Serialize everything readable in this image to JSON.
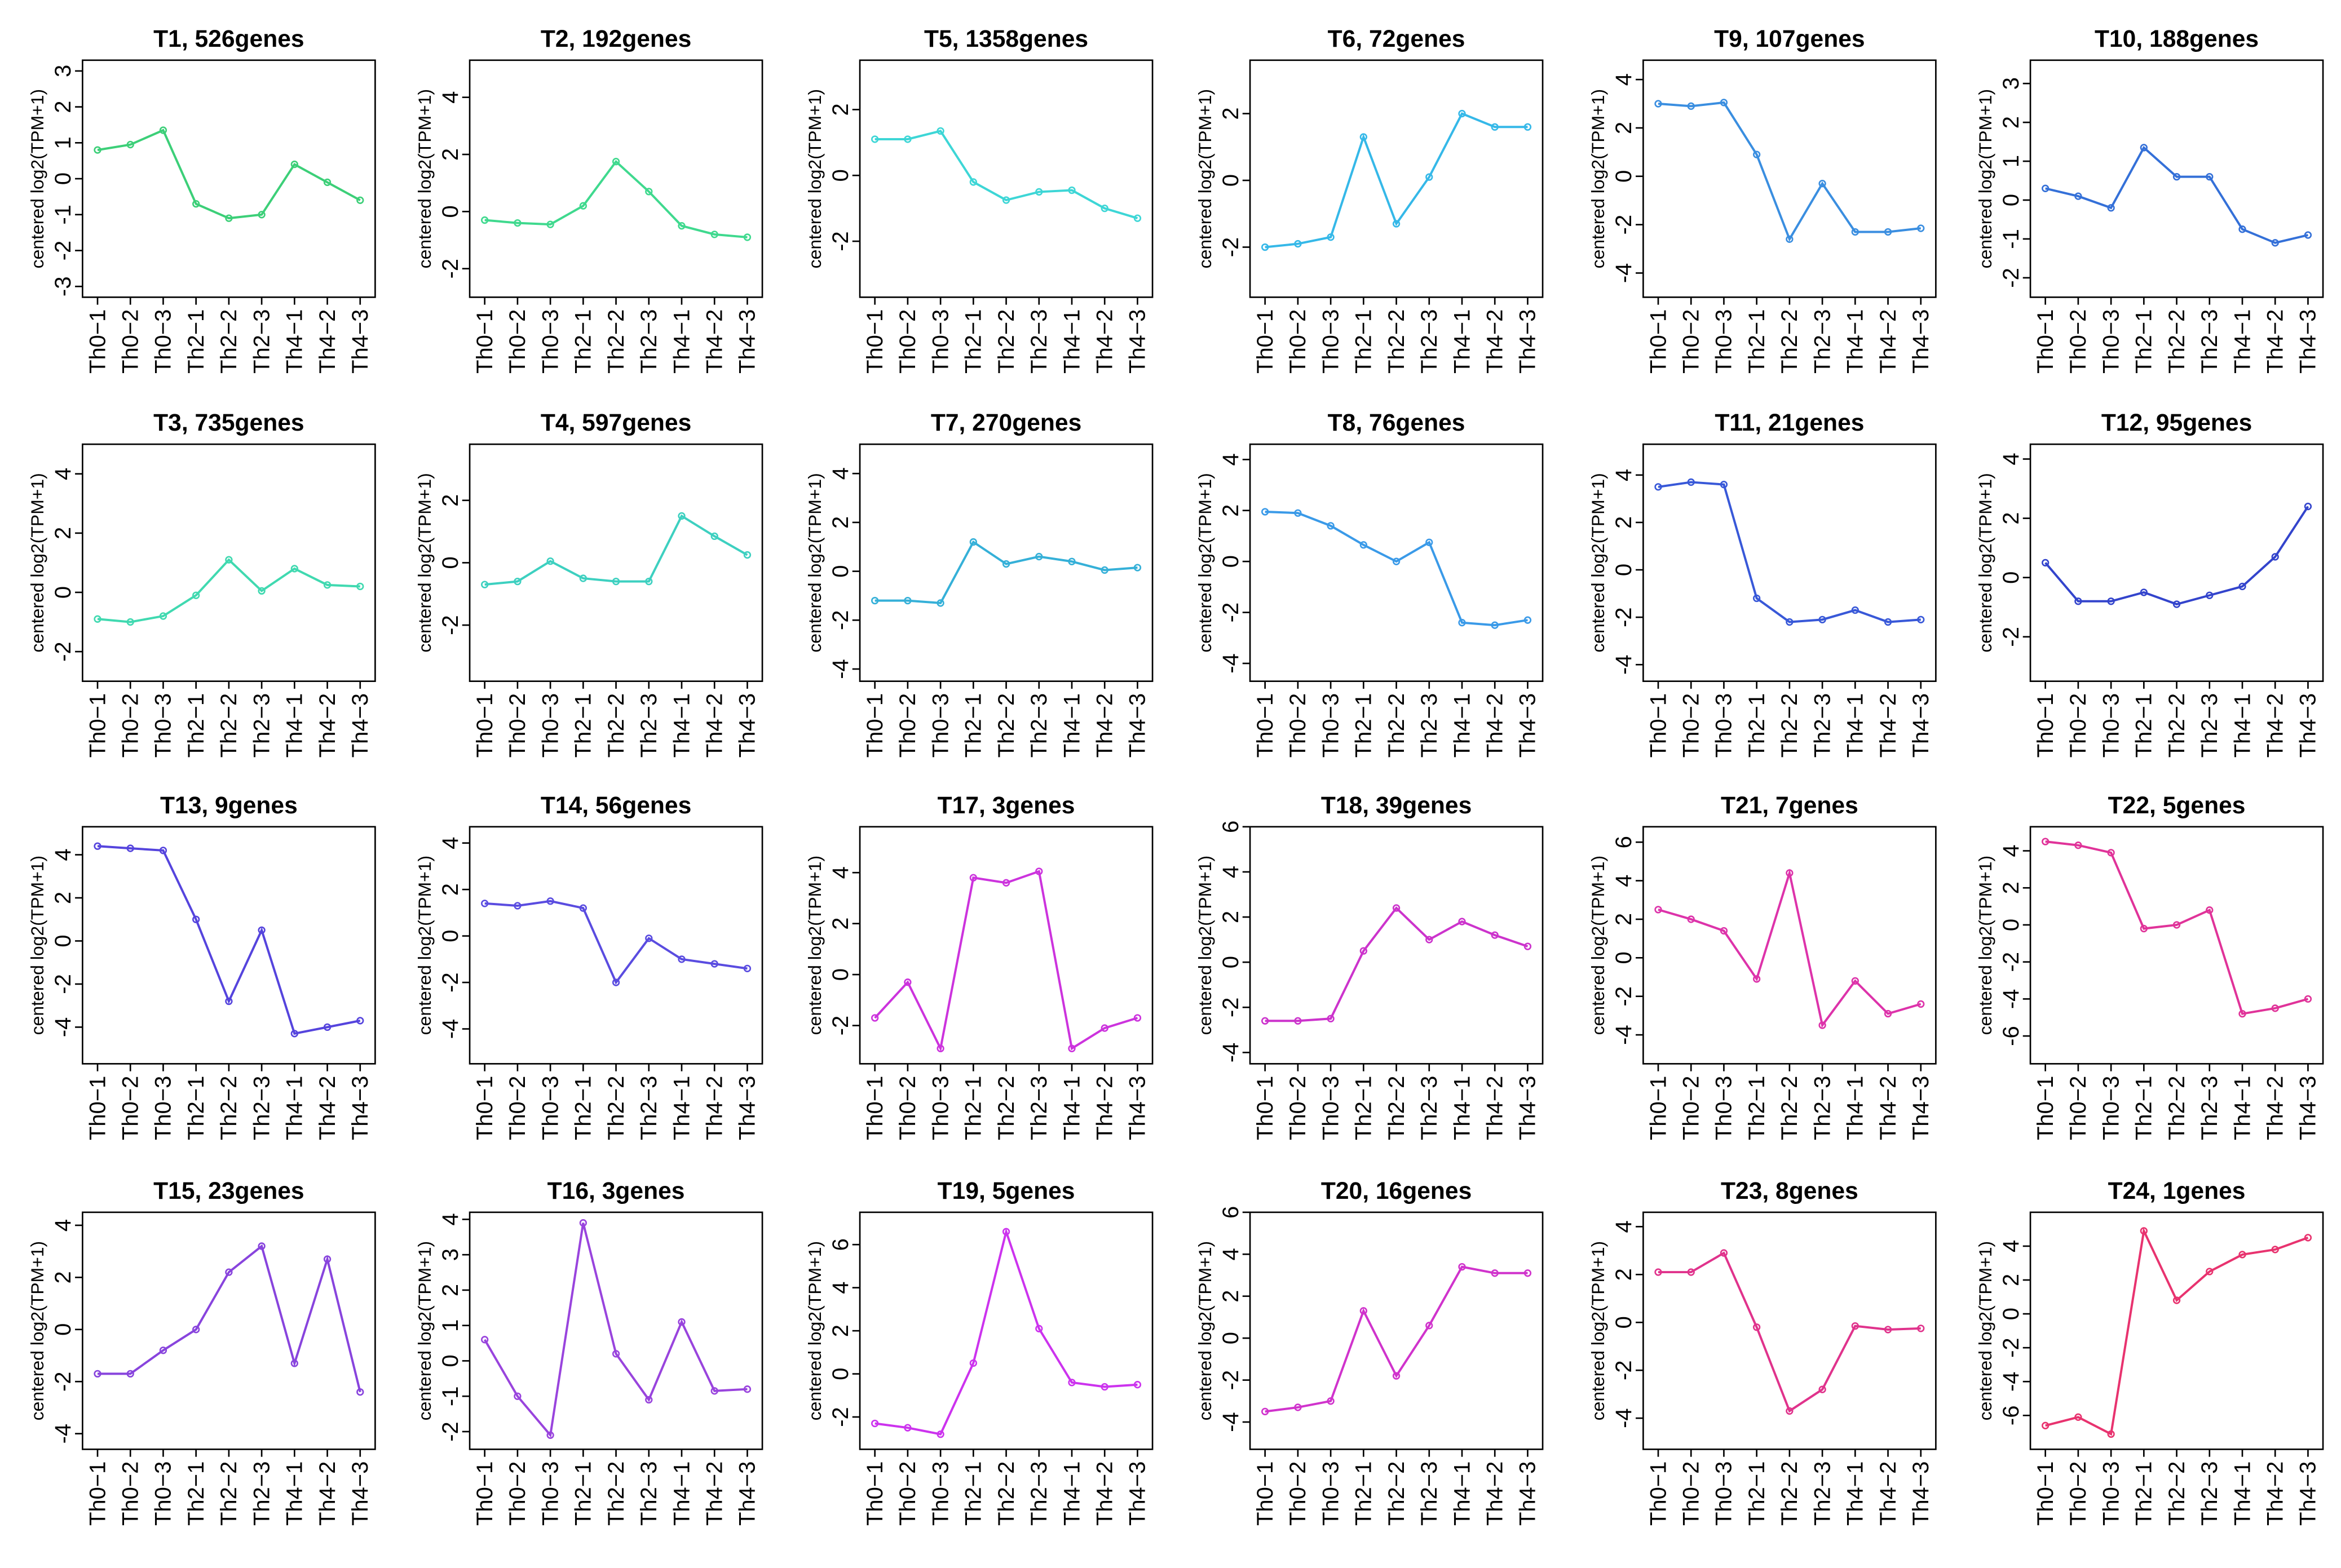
{
  "chart_data": [
    {
      "type": "line",
      "title": "T1, 526genes",
      "ylabel": "centered log2(TPM+1)",
      "categories": [
        "Th0−1",
        "Th0−2",
        "Th0−3",
        "Th2−1",
        "Th2−2",
        "Th2−3",
        "Th4−1",
        "Th4−2",
        "Th4−3"
      ],
      "ylim": [
        -3.3,
        3.3
      ],
      "yticks": [
        -3,
        -2,
        -1,
        0,
        1,
        2,
        3
      ],
      "series": [
        {
          "color": "#3ccf78",
          "values": [
            0.8,
            0.95,
            1.35,
            -0.7,
            -1.1,
            -1.0,
            0.4,
            -0.1,
            -0.6
          ]
        }
      ]
    },
    {
      "type": "line",
      "title": "T2, 192genes",
      "ylabel": "centered log2(TPM+1)",
      "categories": [
        "Th0−1",
        "Th0−2",
        "Th0−3",
        "Th2−1",
        "Th2−2",
        "Th2−3",
        "Th4−1",
        "Th4−2",
        "Th4−3"
      ],
      "ylim": [
        -3,
        5.3
      ],
      "yticks": [
        -2,
        0,
        2,
        4
      ],
      "series": [
        {
          "color": "#3fd98e",
          "values": [
            -0.3,
            -0.4,
            -0.45,
            0.2,
            1.75,
            0.7,
            -0.5,
            -0.8,
            -0.9
          ]
        }
      ]
    },
    {
      "type": "line",
      "title": "T5, 1358genes",
      "ylabel": "centered log2(TPM+1)",
      "categories": [
        "Th0−1",
        "Th0−2",
        "Th0−3",
        "Th2−1",
        "Th2−2",
        "Th2−3",
        "Th4−1",
        "Th4−2",
        "Th4−3"
      ],
      "ylim": [
        -3.7,
        3.5
      ],
      "yticks": [
        -2,
        0,
        2
      ],
      "series": [
        {
          "color": "#3dd6d6",
          "values": [
            1.1,
            1.1,
            1.35,
            -0.2,
            -0.75,
            -0.5,
            -0.45,
            -1.0,
            -1.3
          ]
        }
      ]
    },
    {
      "type": "line",
      "title": "T6, 72genes",
      "ylabel": "centered log2(TPM+1)",
      "categories": [
        "Th0−1",
        "Th0−2",
        "Th0−3",
        "Th2−1",
        "Th2−2",
        "Th2−3",
        "Th4−1",
        "Th4−2",
        "Th4−3"
      ],
      "ylim": [
        -3.5,
        3.6
      ],
      "yticks": [
        -2,
        0,
        2
      ],
      "series": [
        {
          "color": "#35b8e8",
          "values": [
            -2.0,
            -1.9,
            -1.7,
            1.3,
            -1.3,
            0.1,
            2.0,
            1.6,
            1.6
          ]
        }
      ]
    },
    {
      "type": "line",
      "title": "T9, 107genes",
      "ylabel": "centered log2(TPM+1)",
      "categories": [
        "Th0−1",
        "Th0−2",
        "Th0−3",
        "Th2−1",
        "Th2−2",
        "Th2−3",
        "Th4−1",
        "Th4−2",
        "Th4−3"
      ],
      "ylim": [
        -5,
        4.8
      ],
      "yticks": [
        -4,
        -2,
        0,
        2,
        4
      ],
      "series": [
        {
          "color": "#3a8ee0",
          "values": [
            3.0,
            2.9,
            3.05,
            0.9,
            -2.6,
            -0.3,
            -2.3,
            -2.3,
            -2.15
          ]
        }
      ]
    },
    {
      "type": "line",
      "title": "T10, 188genes",
      "ylabel": "centered log2(TPM+1)",
      "categories": [
        "Th0−1",
        "Th0−2",
        "Th0−3",
        "Th2−1",
        "Th2−2",
        "Th2−3",
        "Th4−1",
        "Th4−2",
        "Th4−3"
      ],
      "ylim": [
        -2.5,
        3.6
      ],
      "yticks": [
        -2,
        -1,
        0,
        1,
        2,
        3
      ],
      "series": [
        {
          "color": "#3470d8",
          "values": [
            0.3,
            0.1,
            -0.2,
            1.35,
            0.6,
            0.6,
            -0.75,
            -1.1,
            -0.9
          ]
        }
      ]
    },
    {
      "type": "line",
      "title": "T3, 735genes",
      "ylabel": "centered log2(TPM+1)",
      "categories": [
        "Th0−1",
        "Th0−2",
        "Th0−3",
        "Th2−1",
        "Th2−2",
        "Th2−3",
        "Th4−1",
        "Th4−2",
        "Th4−3"
      ],
      "ylim": [
        -3,
        5
      ],
      "yticks": [
        -2,
        0,
        2,
        4
      ],
      "series": [
        {
          "color": "#40d9b0",
          "values": [
            -0.9,
            -1.0,
            -0.8,
            -0.1,
            1.1,
            0.05,
            0.8,
            0.25,
            0.2
          ]
        }
      ]
    },
    {
      "type": "line",
      "title": "T4, 597genes",
      "ylabel": "centered log2(TPM+1)",
      "categories": [
        "Th0−1",
        "Th0−2",
        "Th0−3",
        "Th2−1",
        "Th2−2",
        "Th2−3",
        "Th4−1",
        "Th4−2",
        "Th4−3"
      ],
      "ylim": [
        -3.8,
        3.8
      ],
      "yticks": [
        -2,
        0,
        2
      ],
      "series": [
        {
          "color": "#3dd0c0",
          "values": [
            -0.7,
            -0.6,
            0.05,
            -0.5,
            -0.6,
            -0.6,
            1.5,
            0.85,
            0.25
          ]
        }
      ]
    },
    {
      "type": "line",
      "title": "T7, 270genes",
      "ylabel": "centered log2(TPM+1)",
      "categories": [
        "Th0−1",
        "Th0−2",
        "Th0−3",
        "Th2−1",
        "Th2−2",
        "Th2−3",
        "Th4−1",
        "Th4−2",
        "Th4−3"
      ],
      "ylim": [
        -4.5,
        5.2
      ],
      "yticks": [
        -4,
        -2,
        0,
        2,
        4
      ],
      "series": [
        {
          "color": "#35b0d8",
          "values": [
            -1.2,
            -1.2,
            -1.3,
            1.2,
            0.3,
            0.6,
            0.4,
            0.05,
            0.15
          ]
        }
      ]
    },
    {
      "type": "line",
      "title": "T8, 76genes",
      "ylabel": "centered log2(TPM+1)",
      "categories": [
        "Th0−1",
        "Th0−2",
        "Th0−3",
        "Th2−1",
        "Th2−2",
        "Th2−3",
        "Th4−1",
        "Th4−2",
        "Th4−3"
      ],
      "ylim": [
        -4.7,
        4.6
      ],
      "yticks": [
        -4,
        -2,
        0,
        2,
        4
      ],
      "series": [
        {
          "color": "#3a9ae8",
          "values": [
            1.95,
            1.9,
            1.4,
            0.65,
            0.0,
            0.75,
            -2.4,
            -2.5,
            -2.3
          ]
        }
      ]
    },
    {
      "type": "line",
      "title": "T11, 21genes",
      "ylabel": "centered log2(TPM+1)",
      "categories": [
        "Th0−1",
        "Th0−2",
        "Th0−3",
        "Th2−1",
        "Th2−2",
        "Th2−3",
        "Th4−1",
        "Th4−2",
        "Th4−3"
      ],
      "ylim": [
        -4.7,
        5.3
      ],
      "yticks": [
        -4,
        -2,
        0,
        2,
        4
      ],
      "series": [
        {
          "color": "#3858d8",
          "values": [
            3.5,
            3.7,
            3.6,
            -1.2,
            -2.2,
            -2.1,
            -1.7,
            -2.2,
            -2.1
          ]
        }
      ]
    },
    {
      "type": "line",
      "title": "T12, 95genes",
      "ylabel": "centered log2(TPM+1)",
      "categories": [
        "Th0−1",
        "Th0−2",
        "Th0−3",
        "Th2−1",
        "Th2−2",
        "Th2−3",
        "Th4−1",
        "Th4−2",
        "Th4−3"
      ],
      "ylim": [
        -3.5,
        4.5
      ],
      "yticks": [
        -2,
        0,
        2,
        4
      ],
      "series": [
        {
          "color": "#3344cc",
          "values": [
            0.5,
            -0.8,
            -0.8,
            -0.5,
            -0.9,
            -0.6,
            -0.3,
            0.7,
            2.4
          ]
        }
      ]
    },
    {
      "type": "line",
      "title": "T13, 9genes",
      "ylabel": "centered log2(TPM+1)",
      "categories": [
        "Th0−1",
        "Th0−2",
        "Th0−3",
        "Th2−1",
        "Th2−2",
        "Th2−3",
        "Th4−1",
        "Th4−2",
        "Th4−3"
      ],
      "ylim": [
        -5.7,
        5.3
      ],
      "yticks": [
        -4,
        -2,
        0,
        2,
        4
      ],
      "series": [
        {
          "color": "#5544dd",
          "values": [
            4.4,
            4.3,
            4.2,
            1.0,
            -2.8,
            0.5,
            -4.3,
            -4.0,
            -3.7
          ]
        }
      ]
    },
    {
      "type": "line",
      "title": "T14, 56genes",
      "ylabel": "centered log2(TPM+1)",
      "categories": [
        "Th0−1",
        "Th0−2",
        "Th0−3",
        "Th2−1",
        "Th2−2",
        "Th2−3",
        "Th4−1",
        "Th4−2",
        "Th4−3"
      ],
      "ylim": [
        -5.5,
        4.7
      ],
      "yticks": [
        -4,
        -2,
        0,
        2,
        4
      ],
      "series": [
        {
          "color": "#5a4ce0",
          "values": [
            1.4,
            1.3,
            1.5,
            1.2,
            -2.0,
            -0.1,
            -1.0,
            -1.2,
            -1.4
          ]
        }
      ]
    },
    {
      "type": "line",
      "title": "T17, 3genes",
      "ylabel": "centered log2(TPM+1)",
      "categories": [
        "Th0−1",
        "Th0−2",
        "Th0−3",
        "Th2−1",
        "Th2−2",
        "Th2−3",
        "Th4−1",
        "Th4−2",
        "Th4−3"
      ],
      "ylim": [
        -3.5,
        5.8
      ],
      "yticks": [
        -2,
        0,
        2,
        4
      ],
      "series": [
        {
          "color": "#cc33dd",
          "values": [
            -1.7,
            -0.3,
            -2.9,
            3.8,
            3.6,
            4.05,
            -2.9,
            -2.1,
            -1.7
          ]
        }
      ]
    },
    {
      "type": "line",
      "title": "T18, 39genes",
      "ylabel": "centered log2(TPM+1)",
      "categories": [
        "Th0−1",
        "Th0−2",
        "Th0−3",
        "Th2−1",
        "Th2−2",
        "Th2−3",
        "Th4−1",
        "Th4−2",
        "Th4−3"
      ],
      "ylim": [
        -4.5,
        6
      ],
      "yticks": [
        -4,
        -2,
        0,
        2,
        4,
        6
      ],
      "series": [
        {
          "color": "#cc33cc",
          "values": [
            -2.6,
            -2.6,
            -2.5,
            0.5,
            2.4,
            1.0,
            1.8,
            1.2,
            0.7
          ]
        }
      ]
    },
    {
      "type": "line",
      "title": "T21, 7genes",
      "ylabel": "centered log2(TPM+1)",
      "categories": [
        "Th0−1",
        "Th0−2",
        "Th0−3",
        "Th2−1",
        "Th2−2",
        "Th2−3",
        "Th4−1",
        "Th4−2",
        "Th4−3"
      ],
      "ylim": [
        -5.5,
        6.8
      ],
      "yticks": [
        -4,
        -2,
        0,
        2,
        4,
        6
      ],
      "series": [
        {
          "color": "#dd33aa",
          "values": [
            2.5,
            2.0,
            1.4,
            -1.1,
            4.4,
            -3.5,
            -1.2,
            -2.9,
            -2.4
          ]
        }
      ]
    },
    {
      "type": "line",
      "title": "T22, 5genes",
      "ylabel": "centered log2(TPM+1)",
      "categories": [
        "Th0−1",
        "Th0−2",
        "Th0−3",
        "Th2−1",
        "Th2−2",
        "Th2−3",
        "Th4−1",
        "Th4−2",
        "Th4−3"
      ],
      "ylim": [
        -7.5,
        5.3
      ],
      "yticks": [
        -6,
        -4,
        -2,
        0,
        2,
        4
      ],
      "series": [
        {
          "color": "#e03399",
          "values": [
            4.5,
            4.3,
            3.9,
            -0.2,
            0,
            0.8,
            -4.8,
            -4.5,
            -4.0
          ]
        }
      ]
    },
    {
      "type": "line",
      "title": "T15, 23genes",
      "ylabel": "centered log2(TPM+1)",
      "categories": [
        "Th0−1",
        "Th0−2",
        "Th0−3",
        "Th2−1",
        "Th2−2",
        "Th2−3",
        "Th4−1",
        "Th4−2",
        "Th4−3"
      ],
      "ylim": [
        -4.6,
        4.5
      ],
      "yticks": [
        -4,
        -2,
        0,
        2,
        4
      ],
      "series": [
        {
          "color": "#8844dd",
          "values": [
            -1.7,
            -1.7,
            -0.8,
            0,
            2.2,
            3.2,
            -1.3,
            2.7,
            -2.4
          ]
        }
      ]
    },
    {
      "type": "line",
      "title": "T16, 3genes",
      "ylabel": "centered log2(TPM+1)",
      "categories": [
        "Th0−1",
        "Th0−2",
        "Th0−3",
        "Th2−1",
        "Th2−2",
        "Th2−3",
        "Th4−1",
        "Th4−2",
        "Th4−3"
      ],
      "ylim": [
        -2.5,
        4.2
      ],
      "yticks": [
        -2,
        -1,
        0,
        1,
        2,
        3,
        4
      ],
      "series": [
        {
          "color": "#9944dd",
          "values": [
            0.6,
            -1.0,
            -2.1,
            3.9,
            0.2,
            -1.1,
            1.1,
            -0.85,
            -0.8
          ]
        }
      ]
    },
    {
      "type": "line",
      "title": "T19, 5genes",
      "ylabel": "centered log2(TPM+1)",
      "categories": [
        "Th0−1",
        "Th0−2",
        "Th0−3",
        "Th2−1",
        "Th2−2",
        "Th2−3",
        "Th4−1",
        "Th4−2",
        "Th4−3"
      ],
      "ylim": [
        -3.5,
        7.5
      ],
      "yticks": [
        -2,
        0,
        2,
        4,
        6
      ],
      "series": [
        {
          "color": "#cc33ee",
          "values": [
            -2.3,
            -2.5,
            -2.8,
            0.5,
            6.6,
            2.1,
            -0.4,
            -0.6,
            -0.5
          ]
        }
      ]
    },
    {
      "type": "line",
      "title": "T20, 16genes",
      "ylabel": "centered log2(TPM+1)",
      "categories": [
        "Th0−1",
        "Th0−2",
        "Th0−3",
        "Th2−1",
        "Th2−2",
        "Th2−3",
        "Th4−1",
        "Th4−2",
        "Th4−3"
      ],
      "ylim": [
        -5.3,
        6
      ],
      "yticks": [
        -4,
        -2,
        0,
        2,
        4,
        6
      ],
      "series": [
        {
          "color": "#d033cc",
          "values": [
            -3.5,
            -3.3,
            -3.0,
            1.3,
            -1.8,
            0.6,
            3.4,
            3.1,
            3.1
          ]
        }
      ]
    },
    {
      "type": "line",
      "title": "T23, 8genes",
      "ylabel": "centered log2(TPM+1)",
      "categories": [
        "Th0−1",
        "Th0−2",
        "Th0−3",
        "Th2−1",
        "Th2−2",
        "Th2−3",
        "Th4−1",
        "Th4−2",
        "Th4−3"
      ],
      "ylim": [
        -5.3,
        4.6
      ],
      "yticks": [
        -4,
        -2,
        0,
        2,
        4
      ],
      "series": [
        {
          "color": "#e0338c",
          "values": [
            2.1,
            2.1,
            2.9,
            -0.2,
            -3.7,
            -2.8,
            -0.15,
            -0.3,
            -0.25
          ]
        }
      ]
    },
    {
      "type": "line",
      "title": "T24, 1genes",
      "ylabel": "centered log2(TPM+1)",
      "categories": [
        "Th0−1",
        "Th0−2",
        "Th0−3",
        "Th2−1",
        "Th2−2",
        "Th2−3",
        "Th4−1",
        "Th4−2",
        "Th4−3"
      ],
      "ylim": [
        -8,
        6
      ],
      "yticks": [
        -6,
        -4,
        -2,
        0,
        2,
        4
      ],
      "series": [
        {
          "color": "#e8336f",
          "values": [
            -6.6,
            -6.1,
            -7.1,
            4.9,
            0.8,
            2.5,
            3.5,
            3.8,
            4.5
          ]
        }
      ]
    }
  ]
}
